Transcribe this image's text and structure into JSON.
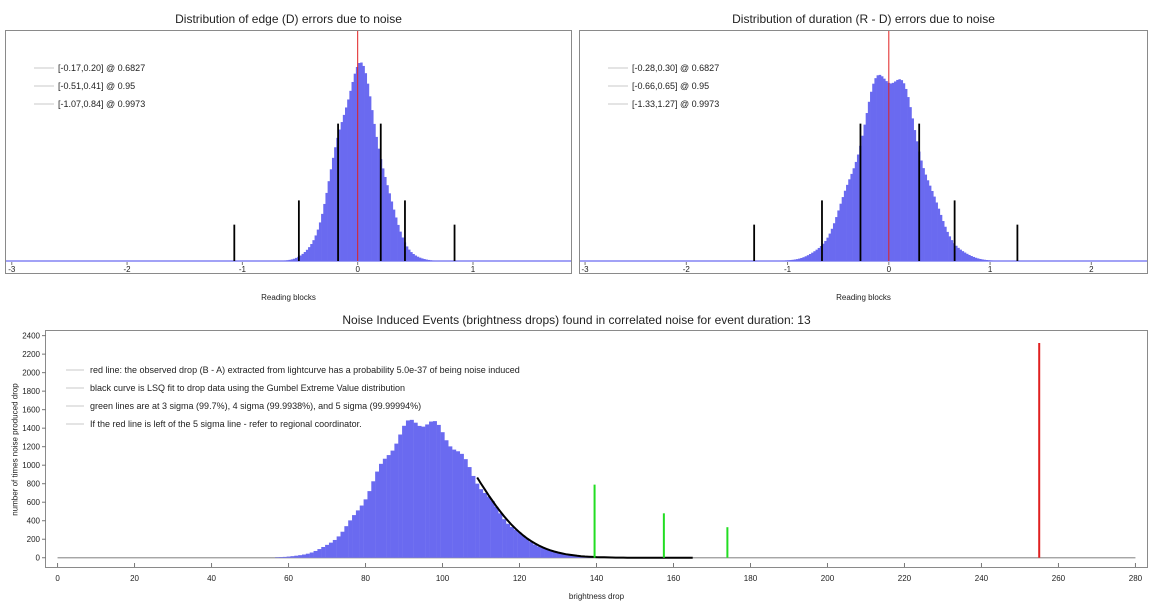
{
  "chart_data": [
    {
      "type": "bar",
      "title": "Distribution of edge (D) errors due to noise",
      "xlabel": "Reading blocks",
      "ylabel": "",
      "xlim": [
        -3.05,
        1.85
      ],
      "x_ticks": [
        "-3",
        "-2",
        "-1",
        "0",
        "1"
      ],
      "grid": false,
      "legend_position": "top-left",
      "legend": [
        "[-0.17,0.20] @ 0.6827",
        "[-0.51,0.41] @ 0.95",
        "[-1.07,0.84] @ 0.9973"
      ],
      "colors": {
        "histogram": "#6a6af0",
        "red_line": "#e02020",
        "bound_lines": "#000000",
        "legend_marker": "#c8c8c8"
      },
      "distribution": {
        "peak_x": 0.0,
        "peak_height": 1.0,
        "sigma_left": 0.185,
        "sigma_right": 0.19
      },
      "red_line_x": 0.0,
      "bound_lines": [
        {
          "x": -0.17,
          "height": 0.68
        },
        {
          "x": 0.2,
          "height": 0.68
        },
        {
          "x": -0.51,
          "height": 0.3
        },
        {
          "x": 0.41,
          "height": 0.3
        },
        {
          "x": -1.07,
          "height": 0.18
        },
        {
          "x": 0.84,
          "height": 0.18
        }
      ]
    },
    {
      "type": "bar",
      "title": "Distribution of duration (R - D) errors due to noise",
      "xlabel": "Reading blocks",
      "ylabel": "",
      "xlim": [
        -3.05,
        2.55
      ],
      "x_ticks": [
        "-3",
        "-2",
        "-1",
        "0",
        "1",
        "2"
      ],
      "grid": false,
      "legend_position": "top-left",
      "legend": [
        "[-0.28,0.30] @ 0.6827",
        "[-0.66,0.65] @ 0.95",
        "[-1.33,1.27] @ 0.9973"
      ],
      "colors": {
        "histogram": "#6a6af0",
        "red_line": "#e02020",
        "bound_lines": "#000000",
        "legend_marker": "#c8c8c8"
      },
      "distribution": {
        "peak_x": 0.0,
        "peak_height": 1.0,
        "sigma_left": 0.3,
        "sigma_right": 0.3
      },
      "red_line_x": 0.0,
      "bound_lines": [
        {
          "x": -0.28,
          "height": 0.68
        },
        {
          "x": 0.3,
          "height": 0.68
        },
        {
          "x": -0.66,
          "height": 0.3
        },
        {
          "x": 0.65,
          "height": 0.3
        },
        {
          "x": -1.33,
          "height": 0.18
        },
        {
          "x": 1.27,
          "height": 0.18
        }
      ]
    },
    {
      "type": "bar",
      "title": "Noise Induced Events (brightness drops) found in correlated noise for event duration: 13",
      "xlabel": "brightness drop",
      "ylabel": "number of times noise produced drop",
      "xlim": [
        -3,
        283
      ],
      "ylim": [
        -100,
        2450
      ],
      "x_ticks": [
        "0",
        "20",
        "40",
        "60",
        "80",
        "100",
        "120",
        "140",
        "160",
        "180",
        "200",
        "220",
        "240",
        "260",
        "280"
      ],
      "y_ticks": [
        "0",
        "200",
        "400",
        "600",
        "800",
        "1000",
        "1200",
        "1400",
        "1600",
        "1800",
        "2000",
        "2200",
        "2400"
      ],
      "grid": false,
      "legend_position": "top-left",
      "legend": [
        "red line: the observed drop (B - A) extracted from lightcurve has a probability 5.0e-37 of being noise induced",
        "black curve is LSQ fit to drop data using the Gumbel Extreme Value distribution",
        "green lines are at 3 sigma (99.7%), 4 sigma (99.9938%), and 5 sigma (99.99994%)",
        "If the red line is left of the 5 sigma line - refer to regional coordinator."
      ],
      "colors": {
        "histogram": "#6a6af0",
        "red_line": "#e02020",
        "green_lines": "#22dd22",
        "fit_curve": "#000000",
        "legend_marker": "#c8c8c8"
      },
      "distribution": {
        "peak_x": 94,
        "peak_count": 1540,
        "x_start": 57,
        "x_end": 165,
        "sigma_left": 11,
        "sigma_right": 14
      },
      "fit_curve": {
        "x_start": 109,
        "x_end": 165
      },
      "green_lines": [
        {
          "x": 139.5,
          "value": 790
        },
        {
          "x": 157.5,
          "value": 480
        },
        {
          "x": 174,
          "value": 330
        }
      ],
      "red_line": {
        "x": 255,
        "value": 2320
      }
    }
  ]
}
